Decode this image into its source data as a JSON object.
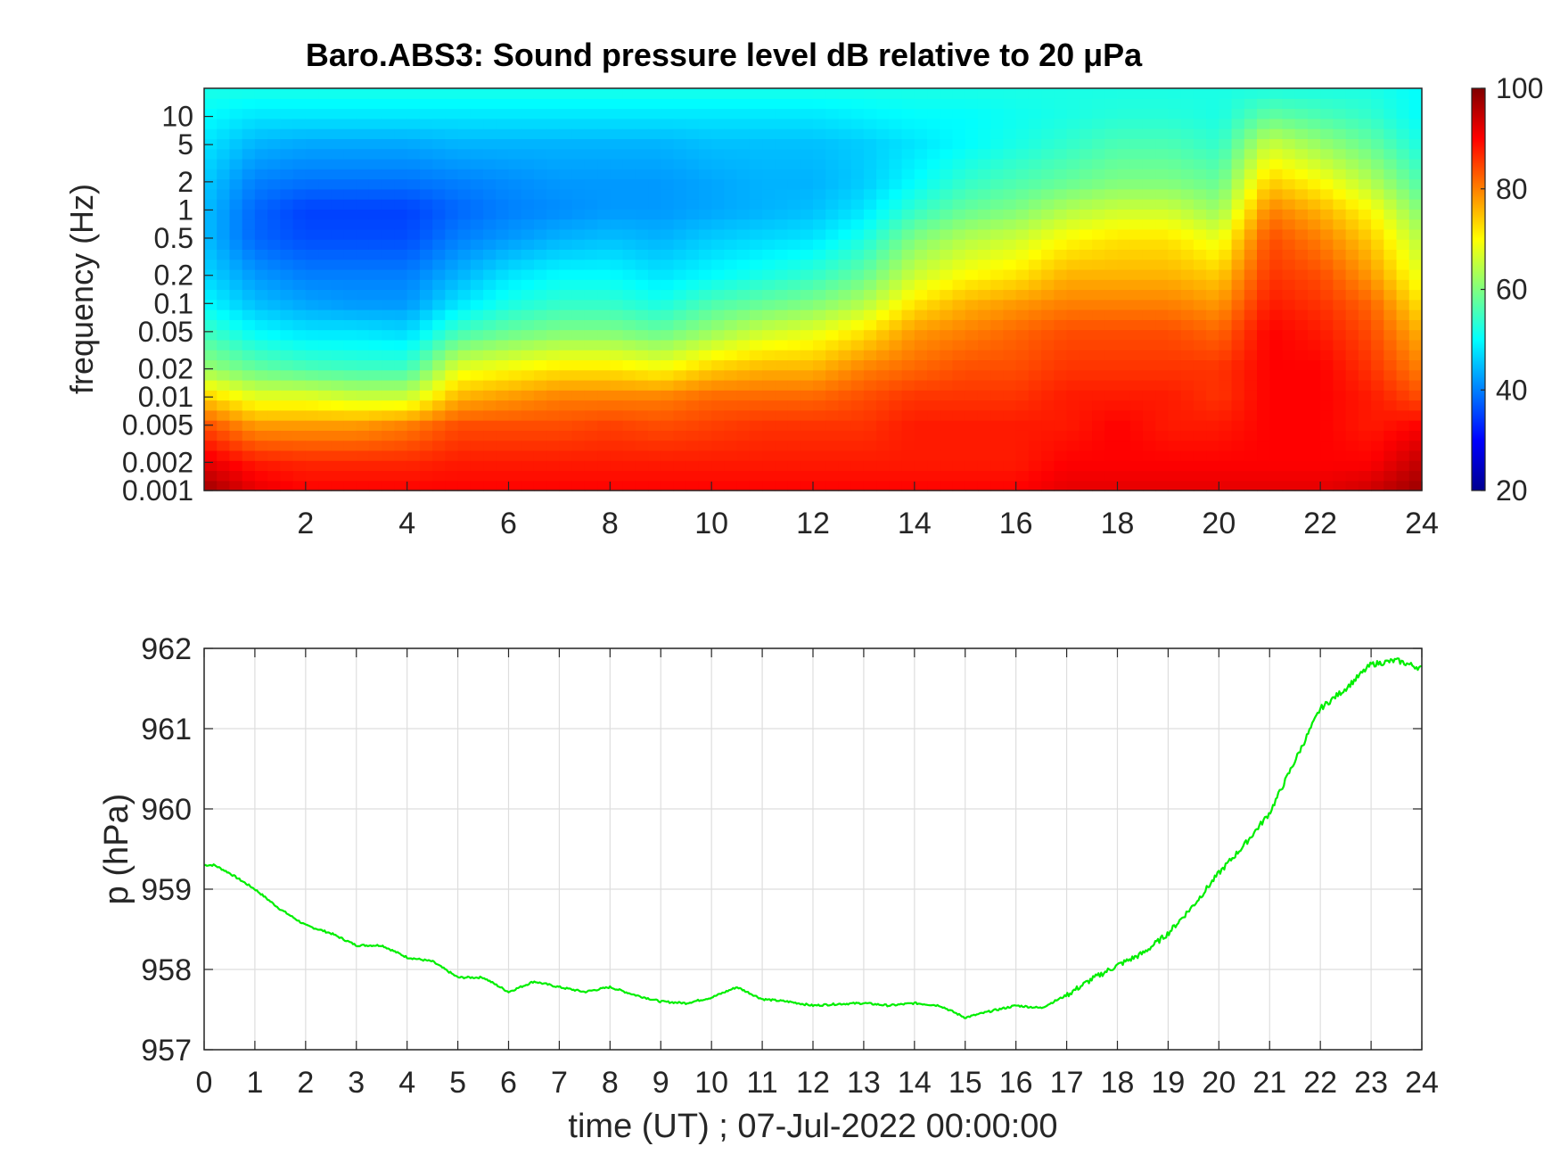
{
  "chart_data": [
    {
      "type": "heatmap",
      "title": "Baro.ABS3: Sound pressure level dB relative to 20 μPa",
      "ylabel": "frequency (Hz)",
      "xlabel": "",
      "xlim": [
        0,
        24
      ],
      "x_ticks": [
        2,
        4,
        6,
        8,
        10,
        12,
        14,
        16,
        18,
        20,
        22,
        24
      ],
      "x_tick_labels": [
        "2",
        "4",
        "6",
        "8",
        "10",
        "12",
        "14",
        "16",
        "18",
        "20",
        "22",
        "24"
      ],
      "y_scale": "log",
      "ylim": [
        0.001,
        20
      ],
      "y_ticks": [
        0.001,
        0.002,
        0.005,
        0.01,
        0.02,
        0.05,
        0.1,
        0.2,
        0.5,
        1,
        2,
        5,
        10
      ],
      "y_tick_labels": [
        "0.001",
        "0.002",
        "0.005",
        "0.01",
        "0.02",
        "0.05",
        "0.1",
        "0.2",
        "0.5",
        "1",
        "2",
        "5",
        "10"
      ],
      "colorbar": {
        "colormap": "jet",
        "range": [
          20,
          100
        ],
        "ticks": [
          20,
          40,
          60,
          80,
          100
        ],
        "tick_labels": [
          "20",
          "40",
          "60",
          "80",
          "100"
        ]
      },
      "spectrogram_grid": {
        "time_hours": [
          0,
          1,
          2,
          3,
          4,
          5,
          6,
          7,
          8,
          9,
          10,
          11,
          12,
          13,
          14,
          15,
          16,
          17,
          18,
          19,
          20,
          21,
          22,
          23,
          24
        ],
        "frequency_hz": [
          0.001,
          0.002,
          0.005,
          0.01,
          0.02,
          0.05,
          0.1,
          0.2,
          0.5,
          1,
          2,
          5,
          10,
          20
        ],
        "level_db": [
          [
            98,
            92,
            84,
            74,
            62,
            55,
            50,
            47,
            45,
            45,
            46,
            48,
            50,
            52
          ],
          [
            92,
            88,
            78,
            68,
            58,
            50,
            45,
            42,
            38,
            38,
            40,
            44,
            48,
            52
          ],
          [
            90,
            87,
            78,
            68,
            56,
            48,
            43,
            40,
            36,
            35,
            39,
            43,
            48,
            52
          ],
          [
            90,
            87,
            78,
            66,
            55,
            48,
            42,
            40,
            36,
            35,
            39,
            43,
            48,
            52
          ],
          [
            90,
            87,
            80,
            66,
            55,
            47,
            42,
            40,
            36,
            35,
            39,
            43,
            48,
            52
          ],
          [
            90,
            88,
            84,
            76,
            68,
            55,
            48,
            44,
            40,
            38,
            40,
            44,
            48,
            52
          ],
          [
            90,
            88,
            84,
            78,
            70,
            58,
            52,
            48,
            42,
            40,
            41,
            44,
            48,
            52
          ],
          [
            90,
            88,
            84,
            80,
            72,
            60,
            54,
            50,
            44,
            41,
            42,
            44,
            48,
            52
          ],
          [
            90,
            88,
            85,
            80,
            72,
            60,
            54,
            50,
            45,
            42,
            42,
            44,
            48,
            52
          ],
          [
            90,
            88,
            84,
            80,
            70,
            58,
            52,
            48,
            44,
            42,
            42,
            44,
            48,
            52
          ],
          [
            90,
            88,
            85,
            82,
            74,
            62,
            56,
            50,
            46,
            43,
            43,
            45,
            48,
            52
          ],
          [
            90,
            88,
            86,
            82,
            76,
            66,
            58,
            52,
            47,
            44,
            44,
            45,
            48,
            52
          ],
          [
            90,
            88,
            86,
            82,
            76,
            68,
            60,
            54,
            48,
            45,
            44,
            45,
            48,
            52
          ],
          [
            90,
            88,
            86,
            84,
            80,
            72,
            64,
            58,
            52,
            48,
            46,
            46,
            49,
            52
          ],
          [
            90,
            88,
            88,
            86,
            82,
            78,
            72,
            66,
            60,
            54,
            50,
            48,
            50,
            52
          ],
          [
            90,
            88,
            88,
            86,
            84,
            80,
            76,
            70,
            64,
            58,
            54,
            50,
            50,
            52
          ],
          [
            90,
            88,
            88,
            86,
            84,
            82,
            78,
            72,
            66,
            60,
            56,
            52,
            51,
            52
          ],
          [
            92,
            90,
            88,
            88,
            86,
            84,
            80,
            76,
            70,
            64,
            58,
            54,
            52,
            52
          ],
          [
            92,
            90,
            90,
            88,
            86,
            84,
            80,
            76,
            72,
            66,
            60,
            56,
            53,
            52
          ],
          [
            92,
            90,
            88,
            88,
            86,
            84,
            80,
            76,
            72,
            66,
            60,
            56,
            53,
            52
          ],
          [
            92,
            90,
            88,
            86,
            86,
            82,
            78,
            74,
            68,
            62,
            58,
            54,
            52,
            52
          ],
          [
            92,
            90,
            90,
            90,
            90,
            90,
            88,
            86,
            84,
            80,
            74,
            66,
            58,
            52
          ],
          [
            92,
            90,
            90,
            90,
            90,
            88,
            86,
            84,
            80,
            76,
            70,
            62,
            56,
            52
          ],
          [
            94,
            90,
            88,
            88,
            86,
            84,
            82,
            78,
            74,
            70,
            64,
            58,
            54,
            52
          ],
          [
            98,
            95,
            90,
            84,
            80,
            76,
            72,
            68,
            64,
            60,
            56,
            52,
            50,
            50
          ]
        ]
      }
    },
    {
      "type": "line",
      "title": "",
      "xlabel": "time (UT) ; 07-Jul-2022 00:00:00",
      "ylabel": "p (hPa)",
      "xlim": [
        0,
        24
      ],
      "ylim": [
        957,
        962
      ],
      "x_ticks": [
        0,
        1,
        2,
        3,
        4,
        5,
        6,
        7,
        8,
        9,
        10,
        11,
        12,
        13,
        14,
        15,
        16,
        17,
        18,
        19,
        20,
        21,
        22,
        23,
        24
      ],
      "x_tick_labels": [
        "0",
        "1",
        "2",
        "3",
        "4",
        "5",
        "6",
        "7",
        "8",
        "9",
        "10",
        "11",
        "12",
        "13",
        "14",
        "15",
        "16",
        "17",
        "18",
        "19",
        "20",
        "21",
        "22",
        "23",
        "24"
      ],
      "y_ticks": [
        957,
        958,
        959,
        960,
        961,
        962
      ],
      "y_tick_labels": [
        "957",
        "958",
        "959",
        "960",
        "961",
        "962"
      ],
      "grid": true,
      "color": "#00ee00",
      "series": [
        {
          "x": [
            0,
            0.2,
            0.5,
            1,
            1.5,
            2,
            2.5,
            3,
            3.5,
            4,
            4.5,
            5,
            5.5,
            6,
            6.5,
            7,
            7.5,
            8,
            8.5,
            9,
            9.5,
            10,
            10.5,
            11,
            11.5,
            12,
            12.5,
            13,
            13.5,
            14,
            14.5,
            15,
            15.5,
            16,
            16.5,
            17,
            17.5,
            18,
            18.5,
            19,
            19.5,
            20,
            20.5,
            21,
            21.5,
            22,
            22.5,
            23,
            23.5,
            24
          ],
          "y": [
            959.3,
            959.3,
            959.2,
            959.0,
            958.75,
            958.55,
            958.45,
            958.3,
            958.3,
            958.15,
            958.1,
            957.9,
            957.9,
            957.72,
            957.85,
            957.78,
            957.72,
            957.78,
            957.68,
            957.6,
            957.58,
            957.65,
            957.78,
            957.63,
            957.6,
            957.55,
            957.57,
            957.58,
            957.55,
            957.58,
            957.55,
            957.4,
            957.48,
            957.55,
            957.52,
            957.68,
            957.88,
            958.05,
            958.2,
            958.45,
            958.8,
            959.2,
            959.55,
            959.95,
            960.6,
            961.25,
            961.5,
            961.8,
            961.85,
            961.75
          ]
        }
      ]
    }
  ]
}
